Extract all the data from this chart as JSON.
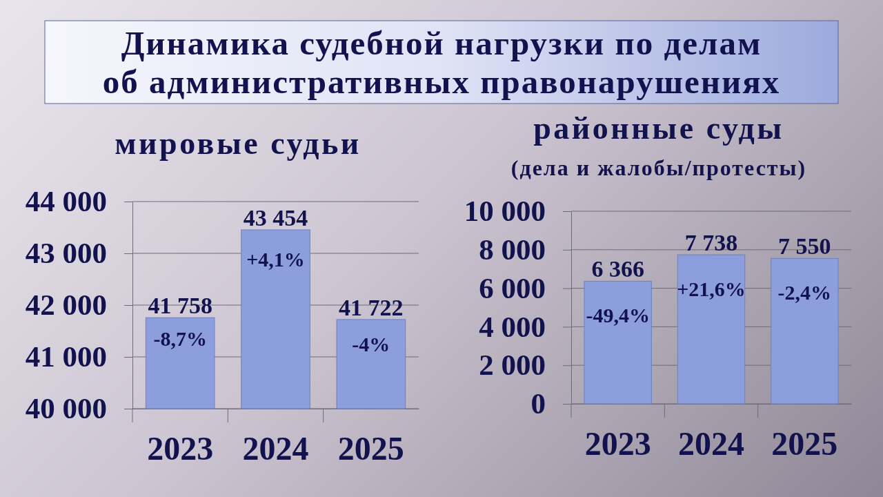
{
  "chart_data": [
    {
      "type": "other",
      "title": "Динамика судебной нагрузки по делам об административных правонарушениях"
    },
    {
      "type": "bar",
      "title": "мировые судьи",
      "categories": [
        "2023",
        "2024",
        "2025"
      ],
      "values": [
        41758,
        43454,
        41722
      ],
      "value_labels": [
        "41 758",
        "43 454",
        "41 722"
      ],
      "color": "#8c9edb",
      "ylim": [
        40000,
        44000
      ],
      "yticks": [
        {
          "value": 40000,
          "label": "40 000"
        },
        {
          "value": 41000,
          "label": "41 000"
        },
        {
          "value": 42000,
          "label": "42 000"
        },
        {
          "value": 43000,
          "label": "43 000"
        },
        {
          "value": 44000,
          "label": "44 000"
        }
      ],
      "grid": "y",
      "annotations": [
        "-8,7%",
        "+4,1%",
        "-4%"
      ]
    },
    {
      "type": "bar",
      "title": "районные суды",
      "subtitle": "(дела и жалобы/протесты)",
      "categories": [
        "2023",
        "2024",
        "2025"
      ],
      "values": [
        6366,
        7738,
        7550
      ],
      "value_labels": [
        "6 366",
        "7 738",
        "7 550"
      ],
      "color": "#8c9edb",
      "ylim": [
        0,
        10000
      ],
      "yticks": [
        0,
        {
          "value": 2000,
          "label": "2 000"
        },
        {
          "value": 4000,
          "label": "4 000"
        },
        {
          "value": 6000,
          "label": "6 000"
        },
        {
          "value": 8000,
          "label": "8 000"
        },
        {
          "value": 10000,
          "label": "10 000"
        }
      ],
      "grid": "y",
      "annotations": [
        "-49,4%",
        "+21,6%",
        "-2,4%"
      ]
    }
  ]
}
